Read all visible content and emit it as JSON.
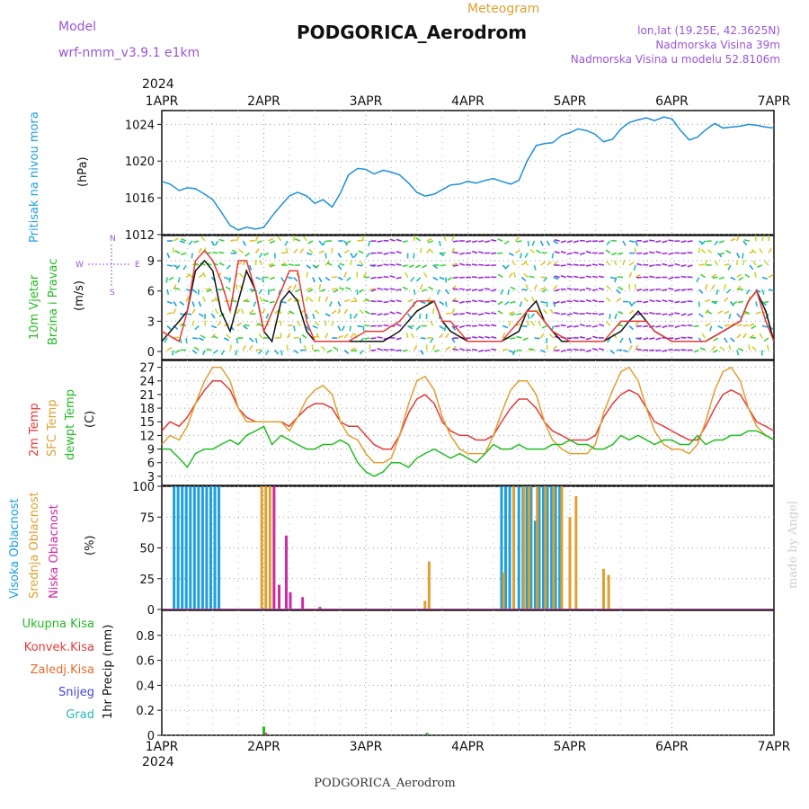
{
  "header": {
    "model_label": "Model",
    "model_name": "wrf-nmm_v3.9.1  e1km",
    "subtitle": "Meteogram",
    "station": "PODGORICA_Aerodrom",
    "lonlat": "lon,lat (19.25E, 42.3625N)",
    "elevation": "Nadmorska Visina 39m",
    "model_elevation": "Nadmorska Visina u modelu 52.8106m",
    "year": "2024",
    "footer_station": "PODGORICA_Aerodrom",
    "credit": "made by Angel"
  },
  "colors": {
    "pressure": "#1e90d8",
    "temp2m": "#e53a3a",
    "sfc": "#e0a030",
    "dewpt": "#22bb22",
    "high_cloud": "#1e9fe0",
    "mid_cloud": "#e0a030",
    "low_cloud": "#cc2aa8",
    "purple_text": "#9a55d6"
  },
  "panels": {
    "pressure": {
      "label1": "Pritisak na nivou mora",
      "label2": "(hPa)"
    },
    "wind": {
      "label1": "10m Vjetar",
      "label2": "Brzina i Pravac",
      "label3": "(m/s)",
      "compass_n": "N",
      "compass_s": "S",
      "compass_e": "E",
      "compass_w": "W"
    },
    "temp": {
      "label1": "2m Temp",
      "label2": "SFC Temp",
      "label3": "dewpt Temp",
      "label4": "(C)"
    },
    "cloud": {
      "label1": "Visoka Oblacnost",
      "label2": "Srednja Oblacnost",
      "label3": "Niska Oblacnost",
      "label4": "(%)"
    },
    "precip": {
      "label1": "Ukupna Kisa",
      "label2": "Konvek.Kisa",
      "label3": "Zaledj.Kisa",
      "label4": "Snijeg",
      "label5": "Grad",
      "label6": "1hr Precip (mm)"
    }
  },
  "chart_data": [
    {
      "type": "line",
      "panel": "pressure",
      "x_ticks": [
        "1APR",
        "2APR",
        "3APR",
        "4APR",
        "5APR",
        "6APR",
        "7APR"
      ],
      "xlim": [
        0,
        6
      ],
      "ylim": [
        1012,
        1025.5
      ],
      "y_ticks": [
        1012,
        1016,
        1020,
        1024
      ],
      "grid": true,
      "series": [
        {
          "x": [
            0,
            0.08,
            0.17,
            0.25,
            0.33,
            0.42,
            0.5,
            0.58,
            0.67,
            0.75,
            0.83,
            0.92,
            1.0,
            1.08,
            1.17,
            1.25,
            1.33,
            1.42,
            1.5,
            1.58,
            1.67,
            1.75,
            1.83,
            1.92,
            2.0,
            2.08,
            2.17,
            2.25,
            2.33,
            2.42,
            2.5,
            2.58,
            2.67,
            2.75,
            2.83,
            2.92,
            3.0,
            3.08,
            3.17,
            3.25,
            3.33,
            3.42,
            3.5,
            3.58,
            3.67,
            3.75,
            3.83,
            3.92,
            4.0,
            4.08,
            4.17,
            4.25,
            4.33,
            4.42,
            4.5,
            4.58,
            4.67,
            4.75,
            4.83,
            4.92,
            5.0,
            5.08,
            5.17,
            5.25,
            5.33,
            5.42,
            5.5,
            5.58,
            5.67,
            5.75,
            5.83,
            5.92,
            6.0
          ],
          "values": [
            1017.8,
            1017.5,
            1016.8,
            1017.1,
            1017.0,
            1016.4,
            1015.8,
            1014.5,
            1013.0,
            1012.5,
            1012.8,
            1012.6,
            1012.8,
            1014.0,
            1015.2,
            1016.2,
            1016.6,
            1016.2,
            1015.4,
            1015.8,
            1015.0,
            1016.5,
            1018.5,
            1019.2,
            1019.1,
            1018.6,
            1019.0,
            1018.8,
            1018.5,
            1017.6,
            1016.6,
            1016.2,
            1016.4,
            1016.9,
            1017.4,
            1017.5,
            1017.8,
            1017.6,
            1017.9,
            1018.1,
            1017.8,
            1017.5,
            1017.9,
            1020.0,
            1021.7,
            1021.9,
            1022.0,
            1022.8,
            1023.1,
            1023.5,
            1023.3,
            1022.9,
            1022.1,
            1022.4,
            1023.5,
            1024.2,
            1024.5,
            1024.7,
            1024.4,
            1024.8,
            1024.6,
            1023.4,
            1022.3,
            1022.6,
            1023.4,
            1024.1,
            1023.6,
            1023.7,
            1023.8,
            1024.0,
            1023.9,
            1023.7,
            1023.6
          ]
        }
      ]
    },
    {
      "type": "line",
      "panel": "wind",
      "xlim": [
        0,
        6
      ],
      "ylim": [
        -0.8,
        11.5
      ],
      "y_ticks": [
        0,
        3,
        6,
        9
      ],
      "grid": true,
      "series": [
        {
          "name": "speed",
          "x": [
            0,
            0.17,
            0.25,
            0.33,
            0.42,
            0.5,
            0.58,
            0.67,
            0.75,
            0.83,
            0.92,
            1.0,
            1.08,
            1.17,
            1.25,
            1.33,
            1.42,
            1.5,
            1.58,
            1.67,
            1.75,
            1.83,
            1.92,
            2.0,
            2.17,
            2.33,
            2.5,
            2.67,
            2.75,
            2.83,
            3.0,
            3.17,
            3.33,
            3.5,
            3.58,
            3.67,
            3.75,
            3.83,
            3.92,
            4.0,
            4.17,
            4.33,
            4.5,
            4.58,
            4.67,
            4.75,
            4.83,
            5.0,
            5.17,
            5.33,
            5.5,
            5.67,
            5.75,
            5.83,
            5.92,
            6.0
          ],
          "values": [
            1,
            3,
            4,
            8,
            9,
            8,
            4,
            2,
            5,
            8,
            6,
            2,
            1,
            5,
            6,
            5,
            2,
            1,
            1,
            1,
            1,
            1,
            1,
            1,
            1,
            2,
            4,
            5,
            3,
            2,
            1,
            1,
            1,
            2,
            4,
            5,
            3,
            2,
            1,
            1,
            1,
            1,
            2,
            3,
            4,
            3,
            2,
            1,
            1,
            1,
            2,
            3,
            5,
            6,
            4,
            1
          ]
        },
        {
          "name": "gust",
          "x": [
            0,
            0.17,
            0.25,
            0.33,
            0.42,
            0.5,
            0.58,
            0.67,
            0.75,
            0.83,
            0.92,
            1.0,
            1.17,
            1.25,
            1.33,
            1.42,
            1.5,
            1.67,
            1.83,
            2.0,
            2.17,
            2.33,
            2.5,
            2.67,
            2.75,
            2.83,
            3.0,
            3.17,
            3.33,
            3.5,
            3.58,
            3.67,
            3.75,
            3.83,
            4.0,
            4.17,
            4.33,
            4.5,
            4.58,
            4.67,
            4.75,
            4.83,
            5.0,
            5.17,
            5.33,
            5.5,
            5.67,
            5.75,
            5.83,
            5.92,
            6.0
          ],
          "values": [
            2,
            1,
            4,
            9,
            10,
            9,
            7,
            4,
            9,
            9,
            6,
            2,
            6,
            8,
            8,
            3,
            1,
            1,
            1,
            2,
            2,
            3,
            5,
            5,
            3,
            3,
            1,
            1,
            1,
            3,
            4,
            4,
            3,
            2,
            1,
            1,
            1,
            3,
            3,
            3,
            3,
            2,
            1,
            1,
            1,
            2,
            3,
            5,
            6,
            3,
            1
          ]
        }
      ]
    },
    {
      "type": "line",
      "panel": "temperature",
      "xlim": [
        0,
        6
      ],
      "ylim": [
        1,
        28.5
      ],
      "y_ticks": [
        3,
        6,
        9,
        12,
        15,
        18,
        21,
        24,
        27
      ],
      "grid": true,
      "series": [
        {
          "name": "2m Temp",
          "x": [
            0,
            0.08,
            0.17,
            0.25,
            0.33,
            0.42,
            0.5,
            0.58,
            0.67,
            0.75,
            0.83,
            0.92,
            1.0,
            1.17,
            1.25,
            1.33,
            1.42,
            1.5,
            1.58,
            1.67,
            1.75,
            1.83,
            1.92,
            2.0,
            2.08,
            2.17,
            2.25,
            2.33,
            2.42,
            2.5,
            2.58,
            2.67,
            2.75,
            2.83,
            2.92,
            3.0,
            3.08,
            3.17,
            3.25,
            3.33,
            3.42,
            3.5,
            3.58,
            3.67,
            3.75,
            3.83,
            3.92,
            4.0,
            4.08,
            4.17,
            4.25,
            4.33,
            4.42,
            4.5,
            4.58,
            4.67,
            4.75,
            4.83,
            4.92,
            5.0,
            5.08,
            5.17,
            5.25,
            5.33,
            5.42,
            5.5,
            5.58,
            5.67,
            5.75,
            5.83,
            5.92,
            6.0
          ],
          "values": [
            13,
            15,
            14,
            16,
            19,
            22,
            24,
            24,
            22,
            18,
            16,
            15,
            15,
            15,
            14,
            16,
            18,
            19,
            19,
            18,
            15,
            14,
            14,
            12,
            10,
            9,
            9,
            12,
            17,
            20,
            21,
            19,
            15,
            13,
            12,
            12,
            11,
            11,
            12,
            15,
            18,
            20,
            20,
            18,
            15,
            13,
            12,
            11,
            11,
            11,
            12,
            16,
            19,
            21,
            22,
            21,
            18,
            15,
            14,
            13,
            12,
            11,
            11,
            14,
            18,
            21,
            22,
            21,
            18,
            15,
            14,
            13
          ]
        },
        {
          "name": "SFC Temp",
          "x": [
            0,
            0.08,
            0.17,
            0.25,
            0.33,
            0.42,
            0.5,
            0.58,
            0.67,
            0.75,
            0.83,
            0.92,
            1.0,
            1.17,
            1.25,
            1.33,
            1.42,
            1.5,
            1.58,
            1.67,
            1.75,
            1.83,
            1.92,
            2.0,
            2.08,
            2.17,
            2.25,
            2.33,
            2.42,
            2.5,
            2.58,
            2.67,
            2.75,
            2.83,
            2.92,
            3.0,
            3.08,
            3.17,
            3.25,
            3.33,
            3.42,
            3.5,
            3.58,
            3.67,
            3.75,
            3.83,
            3.92,
            4.0,
            4.08,
            4.17,
            4.25,
            4.33,
            4.42,
            4.5,
            4.58,
            4.67,
            4.75,
            4.83,
            4.92,
            5.0,
            5.08,
            5.17,
            5.25,
            5.33,
            5.42,
            5.5,
            5.58,
            5.67,
            5.75,
            5.83,
            5.92,
            6.0
          ],
          "values": [
            10,
            12,
            11,
            14,
            19,
            24,
            27,
            27,
            24,
            18,
            15,
            15,
            15,
            15,
            13,
            16,
            20,
            22,
            23,
            21,
            15,
            12,
            11,
            8,
            6,
            6,
            7,
            12,
            19,
            24,
            25,
            22,
            16,
            12,
            9,
            8,
            8,
            8,
            12,
            17,
            22,
            24,
            24,
            21,
            15,
            11,
            9,
            8,
            8,
            8,
            10,
            17,
            22,
            26,
            27,
            24,
            18,
            13,
            10,
            9,
            9,
            8,
            10,
            15,
            22,
            26,
            27,
            24,
            18,
            14,
            12,
            11
          ]
        },
        {
          "name": "dewpt Temp",
          "x": [
            0,
            0.08,
            0.17,
            0.25,
            0.33,
            0.42,
            0.5,
            0.58,
            0.67,
            0.75,
            0.83,
            0.92,
            1.0,
            1.08,
            1.17,
            1.25,
            1.33,
            1.42,
            1.5,
            1.58,
            1.67,
            1.75,
            1.83,
            1.92,
            2.0,
            2.08,
            2.17,
            2.25,
            2.33,
            2.42,
            2.5,
            2.58,
            2.67,
            2.75,
            2.83,
            2.92,
            3.0,
            3.08,
            3.17,
            3.25,
            3.33,
            3.42,
            3.5,
            3.58,
            3.67,
            3.75,
            3.83,
            3.92,
            4.0,
            4.08,
            4.17,
            4.25,
            4.33,
            4.42,
            4.5,
            4.58,
            4.67,
            4.75,
            4.83,
            4.92,
            5.0,
            5.08,
            5.17,
            5.25,
            5.33,
            5.42,
            5.5,
            5.58,
            5.67,
            5.75,
            5.83,
            5.92,
            6.0
          ],
          "values": [
            9,
            9,
            7,
            5,
            8,
            9,
            9,
            10,
            11,
            10,
            12,
            13,
            14,
            10,
            12,
            11,
            10,
            9,
            9,
            10,
            10,
            11,
            10,
            6,
            4,
            3,
            4,
            6,
            6,
            5,
            7,
            8,
            9,
            8,
            7,
            8,
            7,
            6,
            8,
            10,
            9,
            9,
            10,
            9,
            9,
            9,
            10,
            10,
            11,
            10,
            10,
            9,
            9,
            10,
            12,
            11,
            12,
            11,
            10,
            11,
            11,
            10,
            10,
            12,
            10,
            11,
            11,
            12,
            12,
            13,
            13,
            12,
            11
          ]
        }
      ]
    },
    {
      "type": "bar",
      "panel": "cloud",
      "xlim": [
        0,
        6
      ],
      "ylim": [
        0,
        100
      ],
      "y_ticks": [
        0,
        25,
        50,
        75,
        100
      ],
      "grid": true,
      "series": [
        {
          "name": "Visoka Oblacnost",
          "x": [
            0.12,
            0.16,
            0.2,
            0.24,
            0.28,
            0.32,
            0.36,
            0.4,
            0.44,
            0.48,
            0.52,
            0.56,
            3.33,
            3.37,
            3.41,
            3.45,
            3.5,
            3.54,
            3.58,
            3.62,
            3.66,
            3.7,
            3.74,
            3.78,
            3.82,
            3.86,
            3.9
          ],
          "values": [
            100,
            100,
            100,
            100,
            100,
            100,
            100,
            100,
            100,
            100,
            100,
            100,
            100,
            100,
            100,
            100,
            100,
            100,
            100,
            100,
            72,
            100,
            100,
            100,
            100,
            100,
            100
          ]
        },
        {
          "name": "Srednja Oblacnost",
          "x": [
            0.98,
            1.02,
            1.06,
            1.1,
            2.58,
            2.62,
            3.35,
            3.45,
            3.55,
            3.6,
            3.68,
            3.76,
            3.84,
            3.92,
            4.0,
            4.06,
            4.33,
            4.38
          ],
          "values": [
            100,
            100,
            100,
            100,
            7,
            39,
            30,
            100,
            100,
            100,
            100,
            100,
            100,
            100,
            75,
            92,
            33,
            28
          ]
        },
        {
          "name": "Niska Oblacnost",
          "x": [
            1.1,
            1.15,
            1.22,
            1.26,
            1.38,
            1.55
          ],
          "values": [
            100,
            20,
            60,
            14,
            10,
            2
          ]
        }
      ]
    },
    {
      "type": "bar",
      "panel": "precip",
      "xlim": [
        0,
        6
      ],
      "ylim": [
        0,
        1.0
      ],
      "y_ticks": [
        0,
        0.2,
        0.4,
        0.6,
        0.8
      ],
      "grid": true,
      "series": [
        {
          "name": "Ukupna Kisa",
          "x": [
            1.0,
            2.6
          ],
          "values": [
            0.07,
            0.02
          ]
        },
        {
          "name": "Konvek.Kisa",
          "x": [
            1.02
          ],
          "values": [
            0.02
          ]
        }
      ]
    }
  ]
}
